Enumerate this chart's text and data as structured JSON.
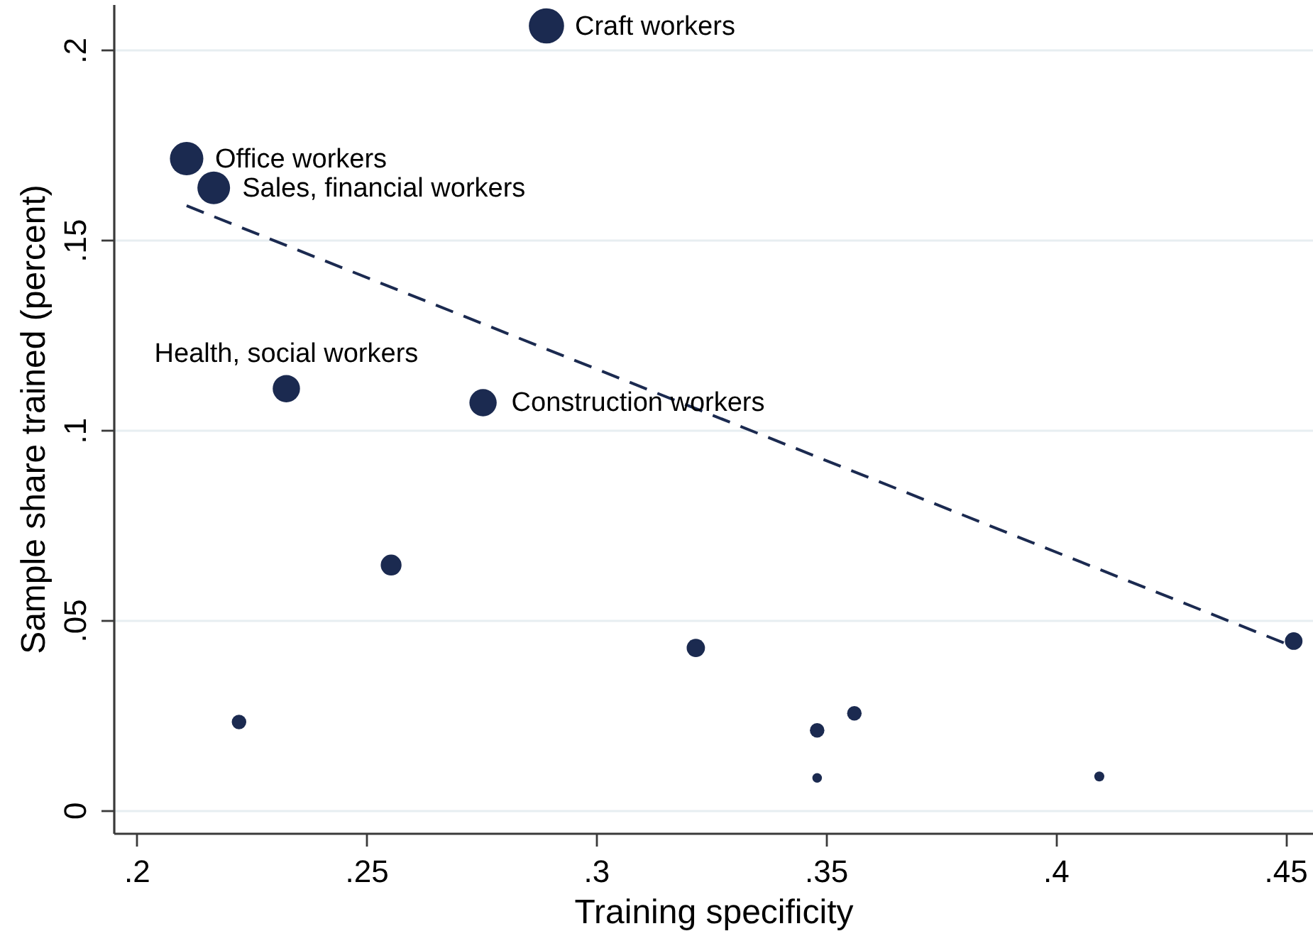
{
  "chart_data": {
    "type": "bubble",
    "xlabel": "Training specificity",
    "ylabel": "Sample share trained (percent)",
    "xlim": [
      0.195,
      0.456
    ],
    "ylim": [
      -0.006,
      0.212
    ],
    "xticks": [
      {
        "value": 0.2,
        "label": ".2"
      },
      {
        "value": 0.25,
        "label": ".25"
      },
      {
        "value": 0.3,
        "label": ".3"
      },
      {
        "value": 0.35,
        "label": ".35"
      },
      {
        "value": 0.4,
        "label": ".4"
      },
      {
        "value": 0.45,
        "label": ".45"
      }
    ],
    "yticks": [
      0,
      {
        "value": 0.05,
        "label": ".05"
      },
      {
        "value": 0.1,
        "label": ".1"
      },
      {
        "value": 0.15,
        "label": ".15"
      },
      {
        "value": 0.2,
        "label": ".2"
      }
    ],
    "grid": "y",
    "series": [
      {
        "color": "#1b2a50",
        "marker": "circle",
        "x": [
          0.2892,
          0.2109,
          0.2168,
          0.2326,
          0.2754,
          0.2554,
          0.2223,
          0.3217,
          0.4518,
          0.3481,
          0.3562,
          0.3481,
          0.4095
        ],
        "values": [
          0.2063,
          0.1714,
          0.1637,
          0.1109,
          0.1072,
          0.0645,
          0.0232,
          0.0427,
          0.0445,
          0.021,
          0.0255,
          0.0085,
          0.0089
        ],
        "sizes": [
          1,
          0.9,
          0.86,
          0.6,
          0.6,
          0.35,
          0.17,
          0.27,
          0.25,
          0.17,
          0.17,
          0.074,
          0.08
        ]
      },
      {
        "type": "line",
        "color": "#1b2a50",
        "line_style": "dashed",
        "x": [
          0.2109,
          0.4518
        ],
        "values": [
          0.159,
          0.043
        ]
      }
    ],
    "annotations": [
      {
        "text": "Craft workers",
        "x": 0.2892,
        "y": 0.2063
      },
      {
        "text": "Office workers",
        "x": 0.2109,
        "y": 0.1714
      },
      {
        "text": "Sales, financial workers",
        "x": 0.2168,
        "y": 0.1637
      },
      {
        "text": "Health, social workers",
        "x": 0.2326,
        "y": 0.1109
      },
      {
        "text": "Construction workers",
        "x": 0.2754,
        "y": 0.1072
      }
    ]
  }
}
